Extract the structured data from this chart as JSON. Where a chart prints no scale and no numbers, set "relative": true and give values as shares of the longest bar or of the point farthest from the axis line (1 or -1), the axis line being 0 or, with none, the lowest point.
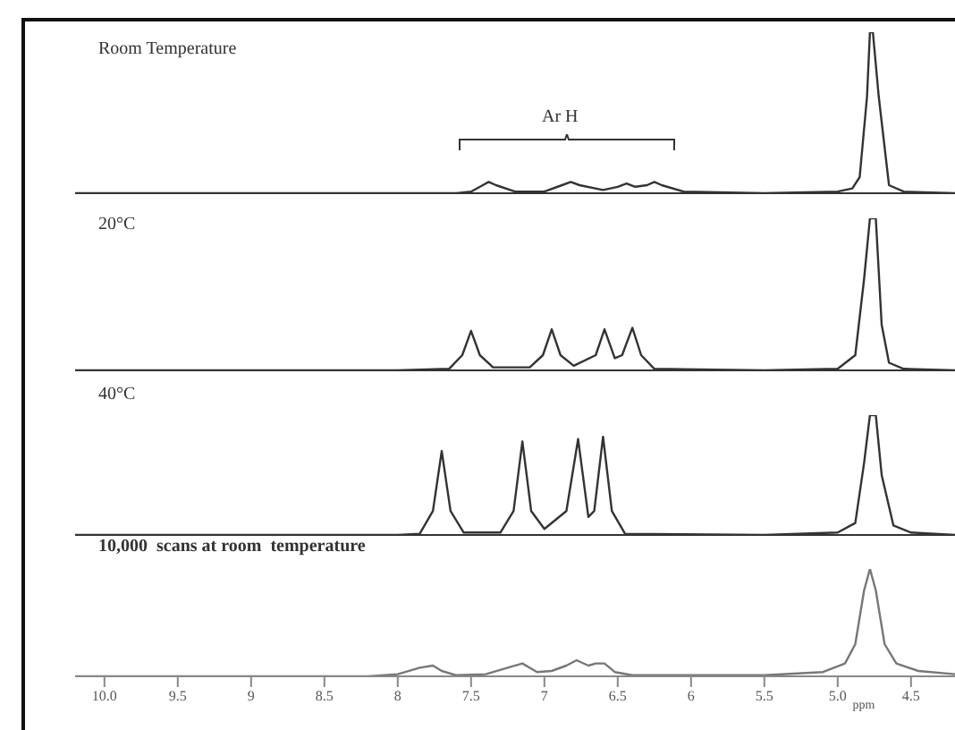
{
  "chart_data": [
    {
      "type": "line",
      "title": "Room Temperature",
      "relative": true,
      "xlim": [
        10.2,
        4.2
      ],
      "tick_labels": false,
      "annotations": [
        "Ar H"
      ],
      "series": [
        {
          "color": "#333333",
          "x": [
            10.2,
            8.0,
            7.6,
            7.5,
            7.42,
            7.38,
            7.33,
            7.2,
            7.0,
            6.88,
            6.82,
            6.76,
            6.6,
            6.5,
            6.44,
            6.38,
            6.3,
            6.25,
            6.2,
            6.05,
            5.5,
            5.0,
            4.9,
            4.85,
            4.8,
            4.78,
            4.76,
            4.72,
            4.65,
            4.55,
            4.2
          ],
          "values": [
            0,
            0,
            0,
            0.01,
            0.05,
            0.07,
            0.05,
            0.01,
            0.01,
            0.05,
            0.07,
            0.05,
            0.02,
            0.04,
            0.06,
            0.04,
            0.05,
            0.07,
            0.05,
            0.01,
            0,
            0.01,
            0.03,
            0.1,
            0.6,
            1,
            1,
            0.6,
            0.05,
            0.01,
            0
          ]
        }
      ]
    },
    {
      "type": "line",
      "title": "20°C",
      "relative": true,
      "xlim": [
        10.2,
        4.2
      ],
      "tick_labels": false,
      "series": [
        {
          "color": "#333333",
          "x": [
            10.2,
            8.0,
            7.65,
            7.56,
            7.5,
            7.44,
            7.35,
            7.1,
            7.01,
            6.95,
            6.89,
            6.8,
            6.65,
            6.59,
            6.52,
            6.47,
            6.4,
            6.34,
            6.25,
            5.5,
            5.0,
            4.88,
            4.82,
            4.78,
            4.74,
            4.7,
            4.65,
            4.55,
            4.2
          ],
          "values": [
            0,
            0,
            0.01,
            0.1,
            0.26,
            0.1,
            0.02,
            0.02,
            0.1,
            0.27,
            0.1,
            0.03,
            0.1,
            0.27,
            0.08,
            0.1,
            0.28,
            0.1,
            0.01,
            0,
            0.01,
            0.1,
            0.6,
            1,
            1,
            0.3,
            0.05,
            0.01,
            0
          ]
        }
      ]
    },
    {
      "type": "line",
      "title": "40°C",
      "relative": true,
      "xlim": [
        10.2,
        4.2
      ],
      "tick_labels": false,
      "series": [
        {
          "color": "#333333",
          "x": [
            10.2,
            8.0,
            7.85,
            7.76,
            7.7,
            7.64,
            7.55,
            7.3,
            7.21,
            7.15,
            7.09,
            7.0,
            6.85,
            6.77,
            6.7,
            6.66,
            6.6,
            6.54,
            6.45,
            5.5,
            5.0,
            4.88,
            4.82,
            4.78,
            4.74,
            4.7,
            4.62,
            4.5,
            4.2
          ],
          "values": [
            0,
            0,
            0.01,
            0.2,
            0.7,
            0.2,
            0.02,
            0.02,
            0.2,
            0.78,
            0.2,
            0.05,
            0.2,
            0.8,
            0.15,
            0.2,
            0.82,
            0.2,
            0.01,
            0,
            0.02,
            0.1,
            0.6,
            1,
            1,
            0.5,
            0.08,
            0.02,
            0
          ]
        }
      ]
    },
    {
      "type": "line",
      "title": "10,000  scans at room  temperature",
      "relative": true,
      "xlim": [
        10.2,
        4.2
      ],
      "xlabel": "ppm",
      "xticks": [
        {
          "value": 10,
          "label": "10.0"
        },
        9.5,
        9,
        8.5,
        8,
        7.5,
        7,
        6.5,
        6,
        5.5,
        {
          "value": 5,
          "label": "5.0"
        },
        4.5
      ],
      "series": [
        {
          "color": "#777777",
          "x": [
            10.2,
            8.2,
            8.0,
            7.85,
            7.76,
            7.7,
            7.6,
            7.4,
            7.25,
            7.15,
            7.05,
            6.95,
            6.85,
            6.78,
            6.7,
            6.65,
            6.59,
            6.52,
            6.4,
            5.5,
            5.1,
            4.95,
            4.88,
            4.82,
            4.78,
            4.74,
            4.68,
            4.6,
            4.45,
            4.2
          ],
          "values": [
            0,
            0,
            0.02,
            0.08,
            0.1,
            0.05,
            0.01,
            0.02,
            0.08,
            0.12,
            0.04,
            0.05,
            0.1,
            0.15,
            0.1,
            0.12,
            0.12,
            0.04,
            0.01,
            0.01,
            0.04,
            0.12,
            0.3,
            0.8,
            1,
            0.8,
            0.3,
            0.12,
            0.05,
            0.02
          ]
        }
      ]
    }
  ]
}
